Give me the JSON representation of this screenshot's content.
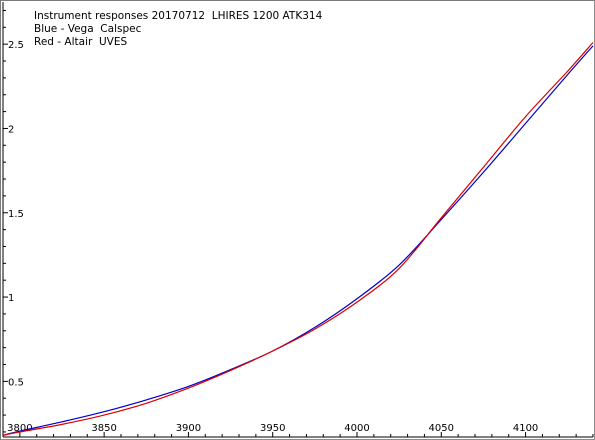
{
  "header": {
    "line1": "Instrument responses 20170712  LHIRES 1200 ATK314",
    "line2": "Blue - Vega  Calspec",
    "line3": "Red - Altair  UVES"
  },
  "colors": {
    "blue": "#0000cc",
    "red": "#dd0000",
    "axis": "#000000",
    "background": "#ffffff"
  },
  "chart_data": {
    "type": "line",
    "title": "",
    "xlabel": "",
    "ylabel": "",
    "xlim": [
      3790,
      4140
    ],
    "ylim": [
      0.17,
      2.75
    ],
    "grid": false,
    "x_ticks": [
      3800,
      3850,
      3900,
      3950,
      4000,
      4050,
      4100
    ],
    "x_tick_labels": [
      "3800",
      "3850",
      "3900",
      "3950",
      "4000",
      "4050",
      "4100"
    ],
    "y_ticks": [
      0.5,
      1,
      1.5,
      2,
      2.5
    ],
    "y_tick_labels": [
      "0.5",
      "1",
      "1.5",
      "2",
      "2.5"
    ],
    "series": [
      {
        "name": "Blue - Vega  Calspec",
        "color": "#0000cc",
        "x": [
          3790,
          3800,
          3825,
          3850,
          3875,
          3900,
          3925,
          3950,
          3975,
          4000,
          4025,
          4050,
          4075,
          4100,
          4125,
          4140
        ],
        "y": [
          0.18,
          0.205,
          0.26,
          0.32,
          0.39,
          0.47,
          0.57,
          0.68,
          0.82,
          0.99,
          1.19,
          1.46,
          1.74,
          2.03,
          2.32,
          2.49
        ]
      },
      {
        "name": "Red - Altair  UVES",
        "color": "#dd0000",
        "x": [
          3790,
          3800,
          3825,
          3850,
          3875,
          3900,
          3925,
          3950,
          3975,
          4000,
          4025,
          4050,
          4075,
          4100,
          4125,
          4140
        ],
        "y": [
          0.18,
          0.2,
          0.245,
          0.3,
          0.37,
          0.46,
          0.565,
          0.68,
          0.81,
          0.97,
          1.17,
          1.47,
          1.77,
          2.07,
          2.34,
          2.51
        ]
      }
    ]
  }
}
